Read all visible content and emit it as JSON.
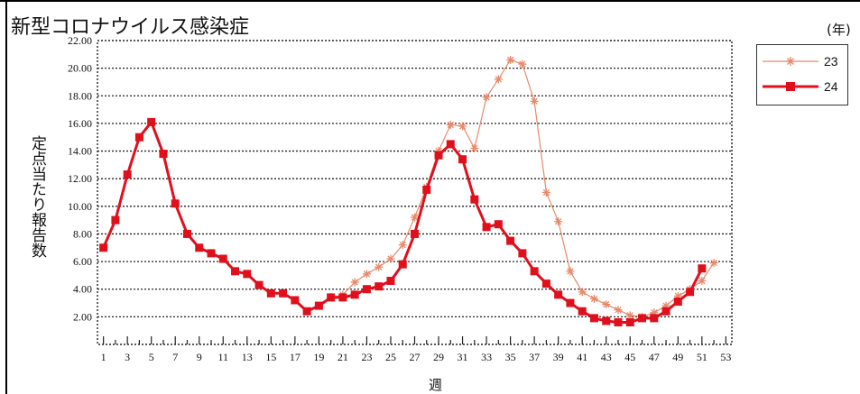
{
  "title": "新型コロナウイルス感染症",
  "unit": "(年)",
  "ylabel": "定点当たり報告数",
  "xlabel": "週",
  "colors": {
    "series_23": "#e8896a",
    "series_24": "#e00f1c"
  },
  "chart_data": {
    "type": "line",
    "title": "新型コロナウイルス感染症",
    "xlabel": "週",
    "ylabel": "定点当たり報告数",
    "xlim": [
      0.5,
      53.5
    ],
    "ylim": [
      0,
      22
    ],
    "x_ticks": [
      1,
      3,
      5,
      7,
      9,
      11,
      13,
      15,
      17,
      19,
      21,
      23,
      25,
      27,
      29,
      31,
      33,
      35,
      37,
      39,
      41,
      43,
      45,
      47,
      49,
      51,
      53
    ],
    "y_ticks": [
      "2.00",
      "4.00",
      "6.00",
      "8.00",
      "10.00",
      "12.00",
      "14.00",
      "16.00",
      "18.00",
      "20.00",
      "22.00"
    ],
    "grid": true,
    "legend_position": "right",
    "series": [
      {
        "name": "23",
        "marker": "asterisk",
        "x": [
          20,
          21,
          22,
          23,
          24,
          25,
          26,
          27,
          28,
          29,
          30,
          31,
          32,
          33,
          34,
          35,
          36,
          37,
          38,
          39,
          40,
          41,
          42,
          43,
          44,
          45,
          46,
          47,
          48,
          49,
          50,
          51,
          52
        ],
        "values": [
          3.4,
          3.6,
          4.5,
          5.1,
          5.6,
          6.2,
          7.2,
          9.2,
          11.4,
          14.0,
          15.9,
          15.8,
          14.2,
          17.9,
          19.2,
          20.6,
          20.3,
          17.6,
          11.0,
          8.9,
          5.3,
          3.8,
          3.3,
          2.9,
          2.5,
          2.1,
          2.0,
          2.3,
          2.8,
          3.5,
          4.0,
          4.6,
          5.9
        ]
      },
      {
        "name": "24",
        "marker": "square",
        "x": [
          1,
          2,
          3,
          4,
          5,
          6,
          7,
          8,
          9,
          10,
          11,
          12,
          13,
          14,
          15,
          16,
          17,
          18,
          19,
          20,
          21,
          22,
          23,
          24,
          25,
          26,
          27,
          28,
          29,
          30,
          31,
          32,
          33,
          34,
          35,
          36,
          37,
          38,
          39,
          40,
          41,
          42,
          43,
          44,
          45,
          46,
          47,
          48,
          49,
          50,
          51
        ],
        "values": [
          7.0,
          9.0,
          12.3,
          15.0,
          16.1,
          13.8,
          10.2,
          8.0,
          7.0,
          6.6,
          6.2,
          5.3,
          5.1,
          4.3,
          3.7,
          3.7,
          3.2,
          2.4,
          2.8,
          3.4,
          3.4,
          3.6,
          4.0,
          4.2,
          4.6,
          5.8,
          8.0,
          11.2,
          13.7,
          14.5,
          13.4,
          10.5,
          8.5,
          8.7,
          7.5,
          6.6,
          5.3,
          4.4,
          3.6,
          3.0,
          2.4,
          1.9,
          1.7,
          1.6,
          1.6,
          1.9,
          1.9,
          2.4,
          3.1,
          3.8,
          5.5
        ]
      }
    ]
  }
}
